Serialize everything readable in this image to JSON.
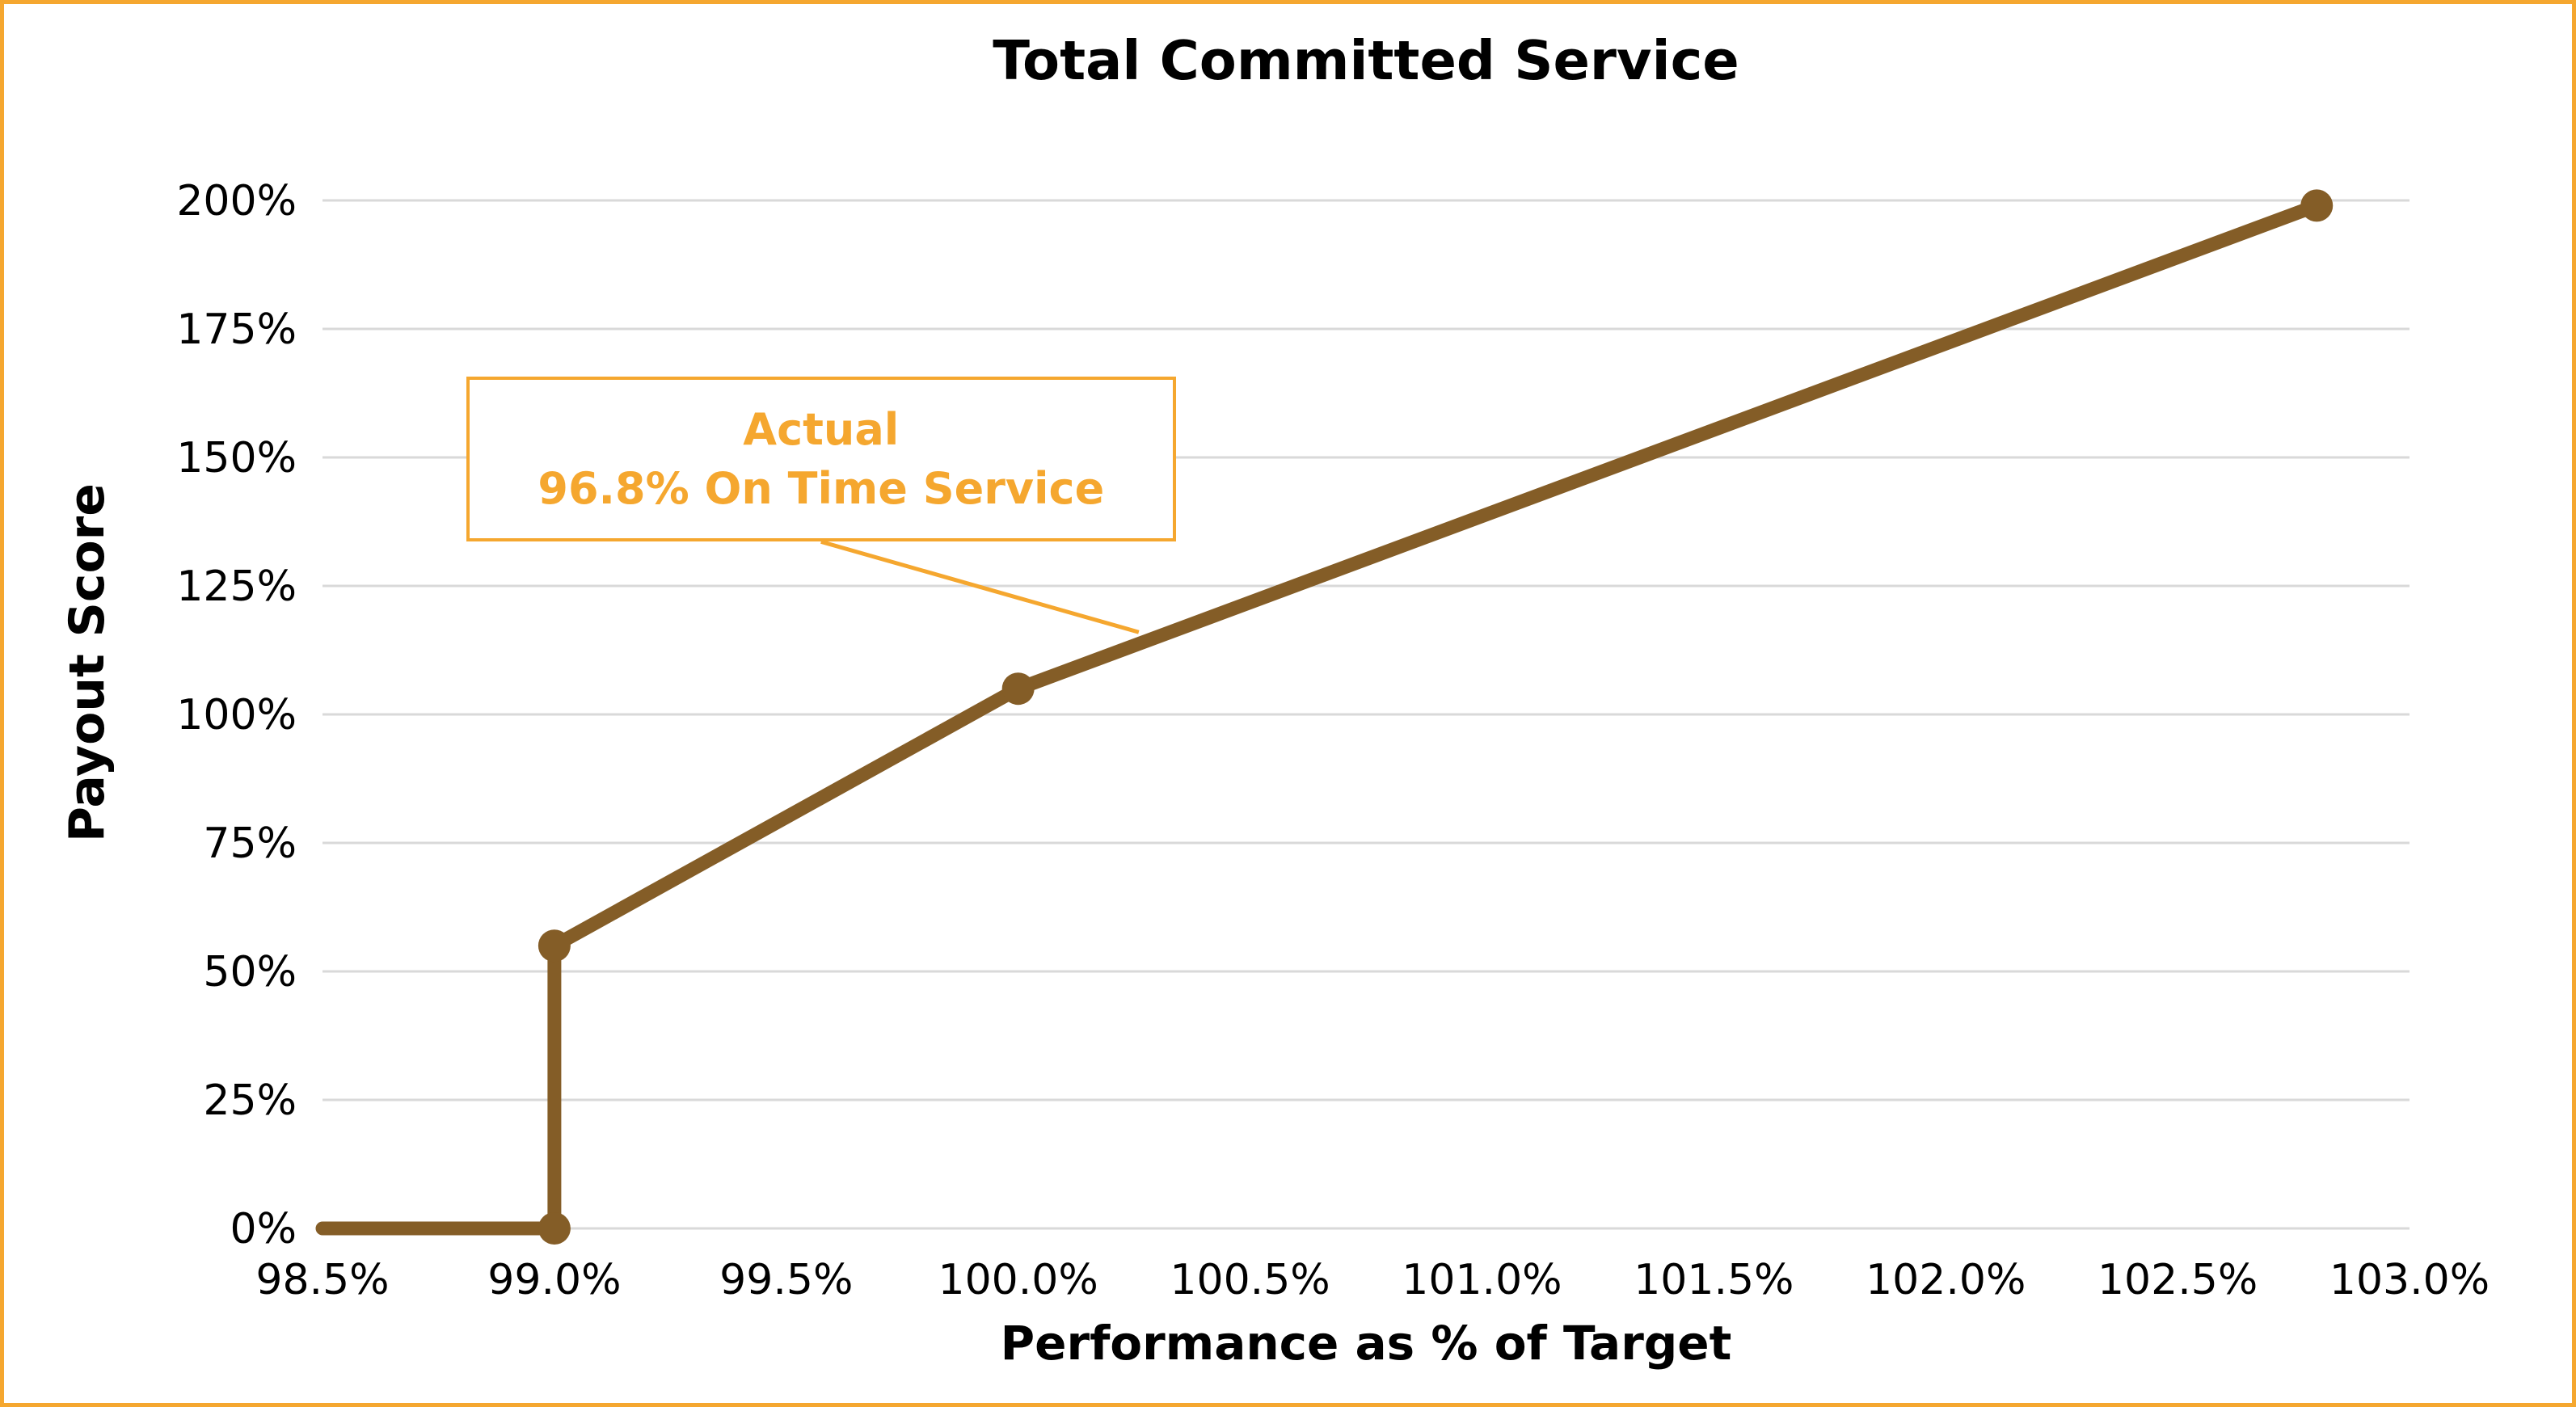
{
  "chart": {
    "title": "Total Committed Service",
    "x_axis": {
      "title": "Performance as % of Target"
    },
    "y_axis": {
      "title": "Payout Score"
    },
    "annotation": {
      "line1": "Actual",
      "line2": "96.8% On Time Service"
    }
  },
  "chart_data": {
    "type": "line",
    "title": "Total Committed Service",
    "xlabel": "Performance as % of Target",
    "ylabel": "Payout Score",
    "xlim": [
      98.5,
      103.0
    ],
    "ylim": [
      0,
      200
    ],
    "grid": "horizontal-only",
    "legend": "none",
    "x_ticks": {
      "values": [
        98.5,
        99.0,
        99.5,
        100.0,
        100.5,
        101.0,
        101.5,
        102.0,
        102.5,
        103.0
      ],
      "labels": [
        "98.5%",
        "99.0%",
        "99.5%",
        "100.0%",
        "100.5%",
        "101.0%",
        "101.5%",
        "102.0%",
        "102.5%",
        "103.0%"
      ]
    },
    "y_ticks": {
      "values": [
        0,
        25,
        50,
        75,
        100,
        125,
        150,
        175,
        200
      ],
      "labels": [
        "0%",
        "25%",
        "50%",
        "75%",
        "100%",
        "125%",
        "150%",
        "175%",
        "200%"
      ]
    },
    "series": [
      {
        "name": "Payout Score",
        "points": [
          [
            98.5,
            0
          ],
          [
            99.0,
            0
          ],
          [
            99.0,
            55
          ],
          [
            100.0,
            105
          ],
          [
            102.8,
            199
          ]
        ],
        "marker_points": [
          [
            99.0,
            0
          ],
          [
            99.0,
            55
          ],
          [
            100.0,
            105
          ],
          [
            102.8,
            199
          ]
        ],
        "note": "step jump at 99.0% from 0% to 55% payout; dot markers at vertices"
      }
    ],
    "annotation": {
      "text": [
        "Actual",
        "96.8% On Time Service"
      ],
      "box": {
        "x1": 98.81,
        "x2": 100.34,
        "y_top": 165.7,
        "y_bottom": 133.6
      },
      "leader_from": {
        "x": 99.575,
        "y": 133.6
      },
      "leader_to": {
        "x": 100.26,
        "y": 116
      }
    }
  },
  "colors": {
    "line_brown": "#845D27",
    "accent_orange": "#F5A72F",
    "gridline": "#D9D9D9",
    "text": "#000000",
    "background": "#FFFFFF"
  }
}
